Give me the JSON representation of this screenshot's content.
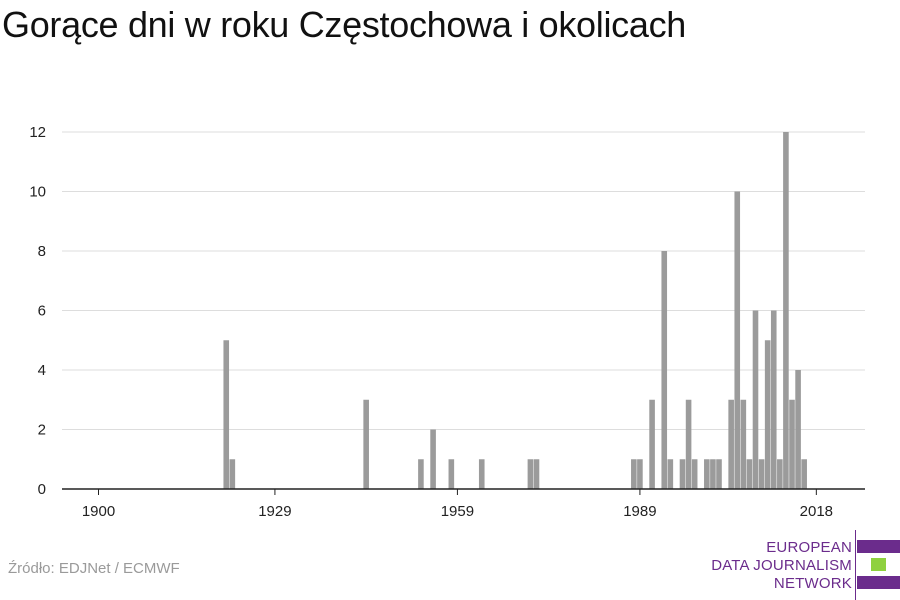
{
  "title": "Gorące dni w roku Częstochowa i okolicach",
  "source": "Źródło: EDJNet / ECMWF",
  "logo": {
    "lines": [
      "EUROPEAN",
      "DATA JOURNALISM",
      "NETWORK"
    ],
    "colors": {
      "primary": "#6b2c8c",
      "accent": "#8fd13f"
    }
  },
  "chart_data": {
    "type": "bar",
    "title": "Gorące dni w roku Częstochowa i okolicach",
    "xlabel": "",
    "ylabel": "",
    "bar_color": "#9b9b9b",
    "grid": true,
    "legend": "none",
    "ylim": [
      0,
      12
    ],
    "yticks": [
      0,
      2,
      4,
      6,
      8,
      10,
      12
    ],
    "xlim": [
      1894,
      2026
    ],
    "xticks": [
      1900,
      1929,
      1959,
      1989,
      2018
    ],
    "series": [
      {
        "x": [
          1921,
          1922,
          1944,
          1953,
          1955,
          1958,
          1963,
          1971,
          1972,
          1988,
          1989,
          1991,
          1993,
          1994,
          1996,
          1997,
          1998,
          2000,
          2001,
          2002,
          2004,
          2005,
          2006,
          2007,
          2008,
          2009,
          2010,
          2011,
          2012,
          2013,
          2014,
          2015,
          2016,
          2017
        ],
        "values": [
          5,
          1,
          3,
          1,
          2,
          1,
          1,
          1,
          1,
          1,
          1,
          3,
          8,
          1,
          1,
          3,
          1,
          1,
          1,
          1,
          3,
          10,
          3,
          1,
          6,
          1,
          5,
          6,
          1,
          12,
          3,
          4,
          1,
          0
        ]
      }
    ]
  }
}
